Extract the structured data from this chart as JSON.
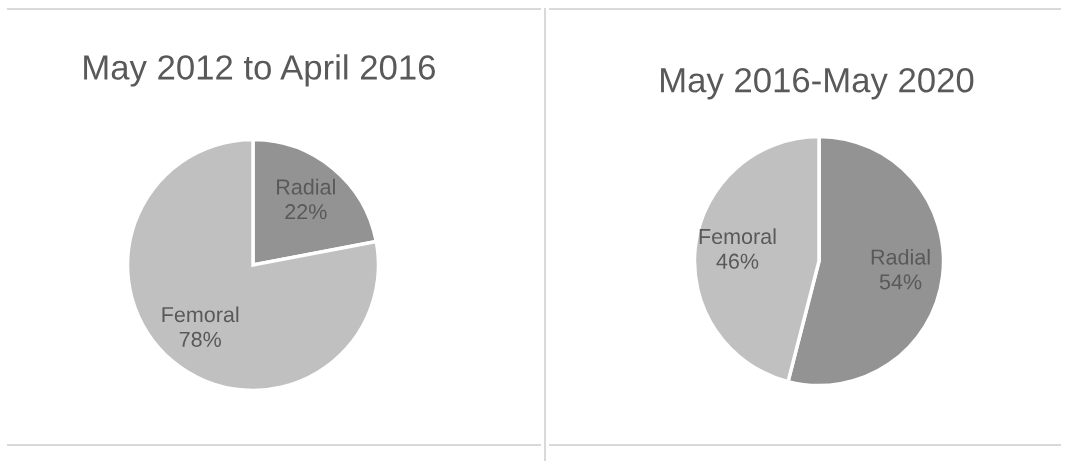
{
  "chart_data": [
    {
      "type": "pie",
      "title": "May 2012 to April 2016",
      "categories": [
        "Radial",
        "Femoral"
      ],
      "values": [
        22,
        78
      ],
      "colors": [
        "#939393",
        "#c0c0c0"
      ],
      "value_labels": [
        "22%",
        "78%"
      ]
    },
    {
      "type": "pie",
      "title": "May 2016-May 2020",
      "categories": [
        "Radial",
        "Femoral"
      ],
      "values": [
        54,
        46
      ],
      "colors": [
        "#939393",
        "#c0c0c0"
      ],
      "value_labels": [
        "54%",
        "46%"
      ]
    }
  ]
}
